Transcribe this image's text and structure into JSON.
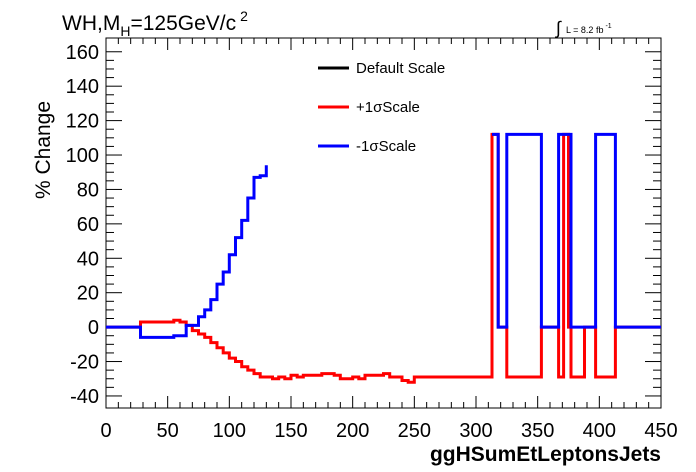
{
  "header": {
    "title_main": "WH,M",
    "title_sub": "H",
    "title_rest": "=125GeV/c",
    "title_sup": "2",
    "lumi_prefix": "L = 8.2 fb",
    "lumi_sup": "-1",
    "lumi_integral": "∫"
  },
  "chart_data": {
    "type": "line",
    "xlabel": "ggHSumEtLeptonsJets",
    "ylabel": "% Change",
    "xlim": [
      0,
      450
    ],
    "ylim": [
      -47,
      168
    ],
    "x_ticks": [
      0,
      50,
      100,
      150,
      200,
      250,
      300,
      350,
      400,
      450
    ],
    "y_ticks": [
      -40,
      -20,
      0,
      20,
      40,
      60,
      80,
      100,
      120,
      140,
      160
    ],
    "legend_position": "top-center",
    "series": [
      {
        "name": "Default Scale",
        "color": "#000000",
        "points": []
      },
      {
        "name": "+1σScale",
        "color": "#ff0000",
        "points": [
          [
            0,
            0
          ],
          [
            28,
            0
          ],
          [
            28,
            3
          ],
          [
            55,
            3
          ],
          [
            55,
            4
          ],
          [
            60,
            4
          ],
          [
            60,
            3
          ],
          [
            65,
            3
          ],
          [
            65,
            1
          ],
          [
            70,
            1
          ],
          [
            70,
            -2
          ],
          [
            75,
            -2
          ],
          [
            75,
            -4
          ],
          [
            80,
            -4
          ],
          [
            80,
            -6
          ],
          [
            85,
            -6
          ],
          [
            85,
            -9
          ],
          [
            90,
            -9
          ],
          [
            90,
            -12
          ],
          [
            95,
            -12
          ],
          [
            95,
            -15
          ],
          [
            100,
            -15
          ],
          [
            100,
            -18
          ],
          [
            105,
            -18
          ],
          [
            105,
            -20
          ],
          [
            110,
            -20
          ],
          [
            110,
            -23
          ],
          [
            115,
            -23
          ],
          [
            115,
            -25
          ],
          [
            120,
            -25
          ],
          [
            120,
            -27
          ],
          [
            125,
            -27
          ],
          [
            125,
            -29
          ],
          [
            135,
            -29
          ],
          [
            135,
            -30
          ],
          [
            140,
            -30
          ],
          [
            140,
            -29
          ],
          [
            145,
            -29
          ],
          [
            145,
            -30
          ],
          [
            150,
            -30
          ],
          [
            150,
            -28
          ],
          [
            155,
            -28
          ],
          [
            155,
            -29
          ],
          [
            160,
            -29
          ],
          [
            160,
            -28
          ],
          [
            175,
            -28
          ],
          [
            175,
            -27
          ],
          [
            185,
            -27
          ],
          [
            185,
            -28
          ],
          [
            190,
            -28
          ],
          [
            190,
            -30
          ],
          [
            200,
            -30
          ],
          [
            200,
            -29
          ],
          [
            205,
            -29
          ],
          [
            205,
            -30
          ],
          [
            210,
            -30
          ],
          [
            210,
            -28
          ],
          [
            225,
            -28
          ],
          [
            225,
            -27
          ],
          [
            230,
            -27
          ],
          [
            230,
            -29
          ],
          [
            240,
            -29
          ],
          [
            240,
            -31
          ],
          [
            245,
            -31
          ],
          [
            245,
            -32
          ],
          [
            250,
            -32
          ],
          [
            250,
            -29
          ],
          [
            313,
            -29
          ],
          [
            313,
            112
          ],
          [
            318,
            112
          ],
          [
            318,
            0
          ],
          [
            325,
            0
          ],
          [
            325,
            -29
          ],
          [
            353,
            -29
          ],
          [
            353,
            0
          ],
          [
            367,
            0
          ],
          [
            367,
            -29
          ],
          [
            371,
            -29
          ],
          [
            371,
            112
          ],
          [
            375,
            112
          ],
          [
            375,
            0
          ],
          [
            377,
            0
          ],
          [
            377,
            -29
          ],
          [
            388,
            -29
          ],
          [
            388,
            0
          ],
          [
            397,
            0
          ],
          [
            397,
            -29
          ],
          [
            413,
            -29
          ],
          [
            413,
            0
          ],
          [
            450,
            0
          ]
        ]
      },
      {
        "name": "-1σScale",
        "color": "#0000ff",
        "segments": [
          [
            [
              0,
              0
            ],
            [
              28,
              0
            ],
            [
              28,
              -6
            ],
            [
              55,
              -6
            ],
            [
              55,
              -5
            ],
            [
              65,
              -5
            ],
            [
              65,
              1
            ],
            [
              75,
              1
            ],
            [
              75,
              6
            ],
            [
              80,
              6
            ],
            [
              80,
              10
            ],
            [
              85,
              10
            ],
            [
              85,
              16
            ],
            [
              90,
              16
            ],
            [
              90,
              25
            ],
            [
              95,
              25
            ],
            [
              95,
              32
            ],
            [
              100,
              32
            ],
            [
              100,
              42
            ],
            [
              105,
              42
            ],
            [
              105,
              52
            ],
            [
              110,
              52
            ],
            [
              110,
              62
            ],
            [
              115,
              62
            ],
            [
              115,
              75
            ],
            [
              120,
              75
            ],
            [
              120,
              87
            ],
            [
              125,
              87
            ],
            [
              125,
              88
            ],
            [
              130,
              88
            ],
            [
              130,
              94
            ]
          ],
          [
            [
              313,
              112
            ],
            [
              318,
              112
            ],
            [
              318,
              0
            ],
            [
              325,
              0
            ],
            [
              325,
              112
            ],
            [
              353,
              112
            ],
            [
              353,
              0
            ],
            [
              367,
              0
            ],
            [
              367,
              112
            ],
            [
              377,
              112
            ],
            [
              377,
              0
            ],
            [
              397,
              0
            ],
            [
              397,
              112
            ],
            [
              413,
              112
            ],
            [
              413,
              0
            ],
            [
              450,
              0
            ]
          ]
        ]
      }
    ]
  }
}
